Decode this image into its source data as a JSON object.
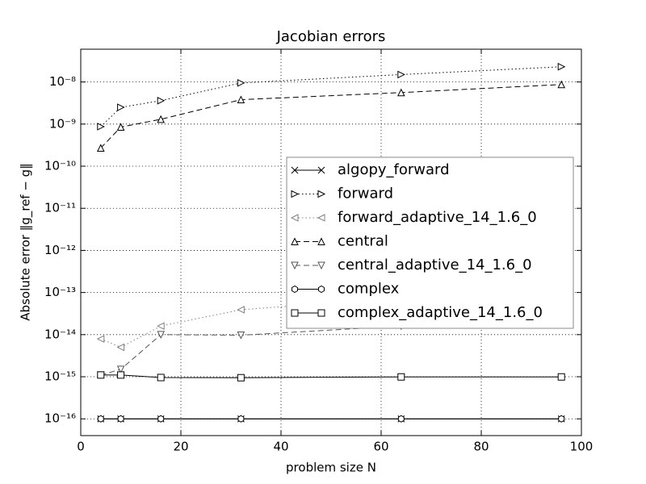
{
  "chart_data": {
    "type": "line",
    "title": "Jacobian errors",
    "xlabel": "problem size N",
    "ylabel": "Absolute error ‖g_ref − g‖",
    "x": [
      4,
      8,
      16,
      32,
      64,
      96
    ],
    "series": [
      {
        "name": "algopy_forward",
        "color": "#000000",
        "marker": "x",
        "linestyle": "solid",
        "values": [
          1e-16,
          1e-16,
          1e-16,
          1e-16,
          1e-16,
          1e-16
        ]
      },
      {
        "name": "forward",
        "color": "#000000",
        "marker": ">",
        "linestyle": "dotted",
        "values": [
          8.7e-10,
          2.5e-09,
          3.6e-09,
          9.5e-09,
          1.5e-08,
          2.3e-08
        ]
      },
      {
        "name": "forward_adaptive_14_1.6_0",
        "color": "#808080",
        "marker": "<",
        "linestyle": "dotted",
        "values": [
          7.9e-15,
          5e-15,
          1.6e-14,
          3.9e-14,
          7.5e-14,
          1.45e-13
        ]
      },
      {
        "name": "central",
        "color": "#000000",
        "marker": "^",
        "linestyle": "dashed",
        "values": [
          2.7e-10,
          8.5e-10,
          1.3e-09,
          3.8e-09,
          5.6e-09,
          8.7e-09
        ]
      },
      {
        "name": "central_adaptive_14_1.6_0",
        "color": "#555555",
        "marker": "v",
        "linestyle": "dashed",
        "values": [
          1.1e-15,
          1.5e-15,
          1e-14,
          9.7e-15,
          1.6e-14,
          3.9e-14
        ]
      },
      {
        "name": "complex",
        "color": "#000000",
        "marker": "h",
        "linestyle": "solid",
        "values": [
          1e-16,
          1e-16,
          1e-16,
          1e-16,
          1e-16,
          1e-16
        ]
      },
      {
        "name": "complex_adaptive_14_1.6_0",
        "color": "#000000",
        "marker": "s",
        "linestyle": "solid",
        "values": [
          1.1e-15,
          1.1e-15,
          9.6e-16,
          9.5e-16,
          9.9e-16,
          9.9e-16
        ]
      }
    ],
    "xlim": [
      0,
      100
    ],
    "xticks": [
      0,
      20,
      40,
      60,
      80,
      100
    ],
    "ylim": [
      4e-17,
      6e-08
    ],
    "yscale": "log",
    "yticks": [
      {
        "value": 1e-16,
        "label": "10⁻¹⁶"
      },
      {
        "value": 1e-15,
        "label": "10⁻¹⁵"
      },
      {
        "value": 1e-14,
        "label": "10⁻¹⁴"
      },
      {
        "value": 1e-13,
        "label": "10⁻¹³"
      },
      {
        "value": 1e-12,
        "label": "10⁻¹²"
      },
      {
        "value": 1e-11,
        "label": "10⁻¹¹"
      },
      {
        "value": 1e-10,
        "label": "10⁻¹⁰"
      },
      {
        "value": 1e-09,
        "label": "10⁻⁹"
      },
      {
        "value": 1e-08,
        "label": "10⁻⁸"
      }
    ],
    "grid": true,
    "legend": "center right"
  }
}
